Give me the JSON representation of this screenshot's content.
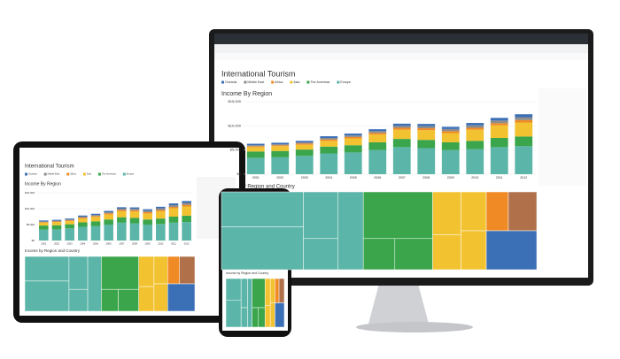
{
  "dashboard": {
    "title": "International Tourism",
    "chart_title": "Income By Region",
    "treemap_title": "Income by Region and Country"
  },
  "chart_data": {
    "type": "bar",
    "stacked": true,
    "categories": [
      "2001",
      "2002",
      "2003",
      "2004",
      "2005",
      "2006",
      "2007",
      "2008",
      "2009",
      "2010",
      "2011",
      "2012"
    ],
    "series": [
      {
        "name": "Europe",
        "color": "#5bb5a8",
        "values": [
          3400,
          3500,
          3800,
          4300,
          4500,
          5000,
          5600,
          5400,
          5000,
          5200,
          5600,
          5800
        ]
      },
      {
        "name": "The Americas",
        "color": "#3aa54a",
        "values": [
          1300,
          1300,
          1300,
          1400,
          1500,
          1600,
          1700,
          1700,
          1600,
          1700,
          1900,
          2000
        ]
      },
      {
        "name": "Asia",
        "color": "#f2c230",
        "values": [
          900,
          1000,
          1000,
          1200,
          1400,
          1600,
          1900,
          2000,
          1900,
          2300,
          2600,
          2900
        ]
      },
      {
        "name": "Africa",
        "color": "#f08a24",
        "values": [
          200,
          200,
          250,
          300,
          300,
          350,
          400,
          400,
          400,
          400,
          450,
          500
        ]
      },
      {
        "name": "Middle East",
        "color": "#8c8c8c",
        "values": [
          200,
          200,
          250,
          300,
          300,
          350,
          400,
          450,
          450,
          500,
          550,
          600
        ]
      },
      {
        "name": "Oceania",
        "color": "#3b6fb6",
        "values": [
          300,
          300,
          300,
          350,
          400,
          400,
          450,
          450,
          450,
          500,
          550,
          600
        ]
      }
    ],
    "ylim": [
      0,
      15000
    ],
    "yticks": [
      {
        "value": 0,
        "label": "$0"
      },
      {
        "value": 5000,
        "label": "$5,000"
      },
      {
        "value": 10000,
        "label": "$10,000"
      },
      {
        "value": 15000,
        "label": "$15,000"
      }
    ],
    "grid": true
  }
}
